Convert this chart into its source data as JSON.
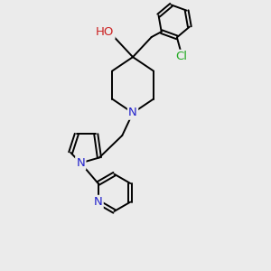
{
  "bg_color": "#ebebeb",
  "atom_colors": {
    "C": "#000000",
    "N": "#2222cc",
    "O": "#cc2222",
    "Cl": "#22aa22",
    "H": "#555555"
  },
  "bond_color": "#000000",
  "bond_width": 1.4,
  "font_size": 9.5,
  "fig_size": [
    3.0,
    3.0
  ],
  "dpi": 100
}
